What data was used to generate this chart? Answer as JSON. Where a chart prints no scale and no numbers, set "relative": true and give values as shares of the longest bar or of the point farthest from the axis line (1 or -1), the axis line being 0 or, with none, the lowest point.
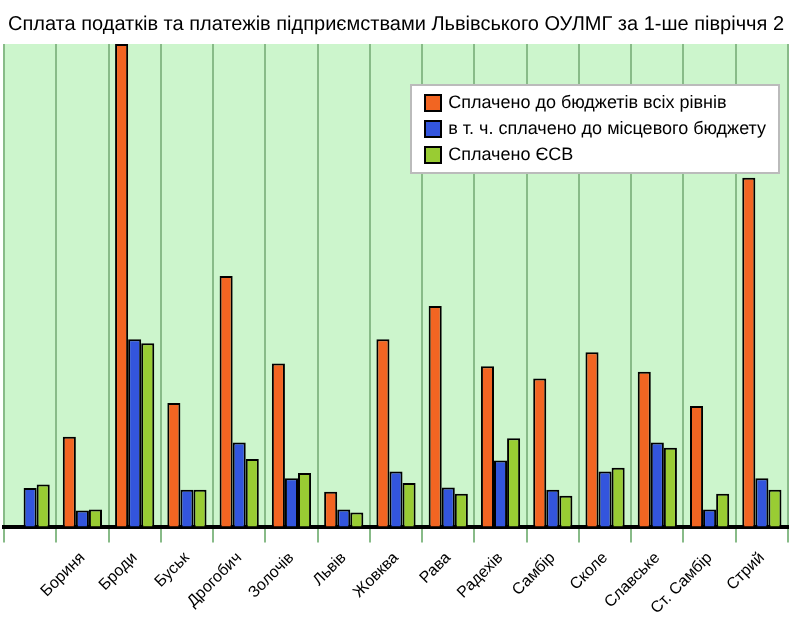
{
  "chart_data": {
    "type": "bar",
    "title": "Сплата податків та платежів підприємствами Львівського ОУЛМГ за 1-ше півріччя 2",
    "relative": true,
    "categories": [
      null,
      "Бориня",
      "Броди",
      "Буськ",
      "Дрогобич",
      "Золочів",
      "Львів",
      "Жовква",
      "Рава",
      "Радехів",
      "Самбір",
      "Сколе",
      "Славське",
      "Ст. Самбір",
      "Стрий"
    ],
    "series": [
      {
        "name": "Сплачено до бюджетів всіх рівнів",
        "color": "#f26522",
        "values": [
          null,
          0.186,
          1,
          0.256,
          0.519,
          0.338,
          0.072,
          0.388,
          0.457,
          0.332,
          0.307,
          0.361,
          0.321,
          0.25,
          0.723
        ]
      },
      {
        "name": "в т. ч. сплачено до місцевого бюджету",
        "color": "#3355dd",
        "values": [
          0.08,
          0.033,
          0.388,
          0.076,
          0.174,
          0.1,
          0.035,
          0.114,
          0.081,
          0.137,
          0.076,
          0.114,
          0.174,
          0.035,
          0.1
        ]
      },
      {
        "name": "Сплачено ЄСВ",
        "color": "#99cc33",
        "values": [
          0.087,
          0.035,
          0.38,
          0.076,
          0.14,
          0.111,
          0.029,
          0.09,
          0.068,
          0.183,
          0.064,
          0.122,
          0.163,
          0.068,
          0.076
        ]
      }
    ],
    "grid": true,
    "legend": "top right"
  }
}
